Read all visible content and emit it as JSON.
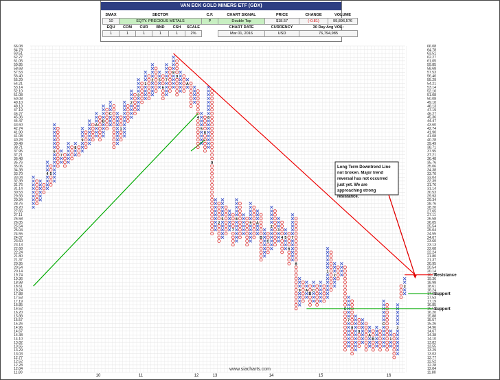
{
  "header": {
    "title": "VAN ECK GOLD MINERS ETF (GDX)",
    "labels": {
      "smax": "SMAX",
      "sector": "SECTOR",
      "cf": "C.F.",
      "chart_signal": "CHART SIGNAL",
      "price": "PRICE",
      "change": "CHANGE",
      "volume": "VOLUME",
      "equ": "EQU",
      "com": "COM",
      "cur": "CUR",
      "bnd": "BND",
      "csh": "CSH",
      "scale": "SCALE",
      "chart_date": "CHART DATE",
      "currency": "CURRENCY",
      "avg_vol": "30 Day Avg VOL:"
    },
    "values": {
      "smax": "10",
      "sector": "EQTY. PRECIOUS METALS",
      "cf": "P",
      "chart_signal": "Double Top",
      "price": "$18.57",
      "change": "(-0.81)",
      "volume": "99,896,576",
      "equ": "1",
      "com": "1",
      "cur": "1",
      "bnd": "1",
      "csh": "1",
      "scale": "2%",
      "chart_date": "Mar 01, 2016",
      "currency": "USD",
      "avg_vol": "76,794,985"
    }
  },
  "chart_data": {
    "type": "point-and-figure",
    "title": "",
    "scale": "2%",
    "yticks": [
      "66.08",
      "64.78",
      "63.51",
      "62.27",
      "61.05",
      "59.85",
      "58.68",
      "57.53",
      "56.40",
      "55.29",
      "54.21",
      "53.14",
      "52.10",
      "51.08",
      "50.08",
      "49.10",
      "48.13",
      "47.19",
      "46.27",
      "45.36",
      "44.47",
      "43.60",
      "42.74",
      "41.90",
      "41.08",
      "40.28",
      "39.49",
      "38.71",
      "37.95",
      "37.21",
      "36.48",
      "35.76",
      "35.06",
      "34.38",
      "33.70",
      "33.04",
      "32.39",
      "31.76",
      "31.14",
      "30.53",
      "29.93",
      "29.34",
      "28.76",
      "28.20",
      "27.65",
      "27.11",
      "26.58",
      "26.05",
      "25.54",
      "25.04",
      "24.55",
      "24.07",
      "23.60",
      "23.13",
      "22.68",
      "22.24",
      "21.80",
      "21.37",
      "20.95",
      "20.54",
      "20.14",
      "19.74",
      "19.36",
      "18.98",
      "18.61",
      "18.24",
      "17.88",
      "17.53",
      "17.19",
      "16.85",
      "16.52",
      "16.20",
      "15.88",
      "15.57",
      "15.26",
      "14.96",
      "14.67",
      "14.38",
      "14.10",
      "13.82",
      "13.55",
      "13.29",
      "13.03",
      "12.77",
      "12.52",
      "12.28",
      "12.04",
      "11.80"
    ],
    "xticks": [
      "10",
      "11",
      "12",
      "13",
      "14",
      "15",
      "16"
    ],
    "columns": [
      {
        "kind": "X",
        "low": "28.20",
        "high": "33.04",
        "month": ""
      },
      {
        "kind": "O",
        "low": "28.76",
        "high": "32.39",
        "month": ""
      },
      {
        "kind": "X",
        "low": "29.34",
        "high": "32.39",
        "month": ""
      },
      {
        "kind": "O",
        "low": "30.53",
        "high": "31.76",
        "month": ""
      },
      {
        "kind": "X",
        "low": "31.14",
        "high": "35.76",
        "month": "4"
      },
      {
        "kind": "O",
        "low": "31.76",
        "high": "35.06",
        "month": "5"
      },
      {
        "kind": "X",
        "low": "32.39",
        "high": "43.60",
        "month": "6"
      },
      {
        "kind": "O",
        "low": "35.06",
        "high": "42.74",
        "month": ""
      },
      {
        "kind": "X",
        "low": "35.76",
        "high": "37.95",
        "month": "7"
      },
      {
        "kind": "O",
        "low": "35.06",
        "high": "37.21",
        "month": ""
      },
      {
        "kind": "X",
        "low": "35.76",
        "high": "39.49",
        "month": ""
      },
      {
        "kind": "O",
        "low": "36.48",
        "high": "38.71",
        "month": ""
      },
      {
        "kind": "X",
        "low": "37.21",
        "high": "39.49",
        "month": "8"
      },
      {
        "kind": "O",
        "low": "37.21",
        "high": "38.71",
        "month": ""
      },
      {
        "kind": "X",
        "low": "37.95",
        "high": "42.74",
        "month": "9"
      },
      {
        "kind": "O",
        "low": "38.71",
        "high": "41.90",
        "month": ""
      },
      {
        "kind": "X",
        "low": "39.49",
        "high": "44.47",
        "month": ""
      },
      {
        "kind": "O",
        "low": "40.28",
        "high": "43.60",
        "month": ""
      },
      {
        "kind": "X",
        "low": "41.08",
        "high": "46.27",
        "month": "A"
      },
      {
        "kind": "O",
        "low": "40.28",
        "high": "45.36",
        "month": ""
      },
      {
        "kind": "X",
        "low": "41.08",
        "high": "48.13",
        "month": "B"
      },
      {
        "kind": "O",
        "low": "42.74",
        "high": "47.19",
        "month": ""
      },
      {
        "kind": "X",
        "low": "43.60",
        "high": "49.10",
        "month": "C"
      },
      {
        "kind": "O",
        "low": "38.71",
        "high": "48.13",
        "month": ""
      },
      {
        "kind": "X",
        "low": "39.49",
        "high": "46.27",
        "month": ""
      },
      {
        "kind": "O",
        "low": "40.28",
        "high": "45.36",
        "month": "1"
      },
      {
        "kind": "X",
        "low": "41.08",
        "high": "49.10",
        "month": ""
      },
      {
        "kind": "O",
        "low": "44.47",
        "high": "48.13",
        "month": ""
      },
      {
        "kind": "X",
        "low": "45.36",
        "high": "52.10",
        "month": "2"
      },
      {
        "kind": "O",
        "low": "46.27",
        "high": "51.08",
        "month": ""
      },
      {
        "kind": "X",
        "low": "47.19",
        "high": "55.29",
        "month": "3"
      },
      {
        "kind": "O",
        "low": "49.10",
        "high": "54.21",
        "month": ""
      },
      {
        "kind": "X",
        "low": "50.08",
        "high": "57.53",
        "month": "1"
      },
      {
        "kind": "O",
        "low": "50.08",
        "high": "56.40",
        "month": ""
      },
      {
        "kind": "X",
        "low": "51.08",
        "high": "59.85",
        "month": "2"
      },
      {
        "kind": "O",
        "low": "52.10",
        "high": "58.68",
        "month": ""
      },
      {
        "kind": "X",
        "low": "53.14",
        "high": "57.53",
        "month": "5"
      },
      {
        "kind": "O",
        "low": "50.08",
        "high": "56.40",
        "month": "6"
      },
      {
        "kind": "X",
        "low": "51.08",
        "high": "59.85",
        "month": "7"
      },
      {
        "kind": "O",
        "low": "52.10",
        "high": "58.68",
        "month": ""
      },
      {
        "kind": "X",
        "low": "53.14",
        "high": "62.27",
        "month": "8"
      },
      {
        "kind": "O",
        "low": "51.08",
        "high": "61.05",
        "month": "9"
      },
      {
        "kind": "X",
        "low": "52.10",
        "high": "57.53",
        "month": ""
      },
      {
        "kind": "O",
        "low": "52.10",
        "high": "56.40",
        "month": ""
      },
      {
        "kind": "X",
        "low": "53.14",
        "high": "55.29",
        "month": "A"
      },
      {
        "kind": "O",
        "low": "48.13",
        "high": "54.21",
        "month": ""
      },
      {
        "kind": "X",
        "low": "49.10",
        "high": "53.14",
        "month": ""
      },
      {
        "kind": "O",
        "low": "38.71",
        "high": "52.10",
        "month": "4"
      },
      {
        "kind": "X",
        "low": "39.49",
        "high": "46.27",
        "month": "5"
      },
      {
        "kind": "O",
        "low": "37.95",
        "high": "45.36",
        "month": "6"
      },
      {
        "kind": "X",
        "low": "38.71",
        "high": "53.14",
        "month": "8"
      },
      {
        "kind": "O",
        "low": "24.55",
        "high": "52.10",
        "month": "9"
      },
      {
        "kind": "X",
        "low": "25.04",
        "high": "29.34",
        "month": ""
      },
      {
        "kind": "O",
        "low": "23.60",
        "high": "28.76",
        "month": "2"
      },
      {
        "kind": "X",
        "low": "24.07",
        "high": "29.34",
        "month": "5"
      },
      {
        "kind": "O",
        "low": "24.55",
        "high": "28.20",
        "month": ""
      },
      {
        "kind": "X",
        "low": "25.04",
        "high": "27.65",
        "month": ""
      },
      {
        "kind": "O",
        "low": "23.13",
        "high": "27.11",
        "month": "7"
      },
      {
        "kind": "X",
        "low": "23.60",
        "high": "29.34",
        "month": "8"
      },
      {
        "kind": "O",
        "low": "24.07",
        "high": "28.76",
        "month": ""
      },
      {
        "kind": "X",
        "low": "24.55",
        "high": "27.11",
        "month": ""
      },
      {
        "kind": "O",
        "low": "23.13",
        "high": "26.58",
        "month": ""
      },
      {
        "kind": "X",
        "low": "23.60",
        "high": "28.76",
        "month": "9"
      },
      {
        "kind": "O",
        "low": "24.07",
        "high": "28.20",
        "month": ""
      },
      {
        "kind": "X",
        "low": "24.55",
        "high": "27.65",
        "month": "A"
      },
      {
        "kind": "O",
        "low": "21.37",
        "high": "27.11",
        "month": "B"
      },
      {
        "kind": "X",
        "low": "21.80",
        "high": "25.04",
        "month": ""
      },
      {
        "kind": "O",
        "low": "22.24",
        "high": "24.55",
        "month": "C"
      },
      {
        "kind": "X",
        "low": "22.68",
        "high": "28.20",
        "month": "2"
      },
      {
        "kind": "O",
        "low": "23.13",
        "high": "27.65",
        "month": ""
      },
      {
        "kind": "X",
        "low": "23.60",
        "high": "26.58",
        "month": "3"
      },
      {
        "kind": "O",
        "low": "22.24",
        "high": "26.05",
        "month": "4"
      },
      {
        "kind": "X",
        "low": "22.68",
        "high": "25.04",
        "month": "5"
      },
      {
        "kind": "O",
        "low": "20.95",
        "high": "24.55",
        "month": "6"
      },
      {
        "kind": "X",
        "low": "21.37",
        "high": "27.11",
        "month": "7"
      },
      {
        "kind": "O",
        "low": "16.52",
        "high": "26.58",
        "month": "8"
      },
      {
        "kind": "X",
        "low": "16.85",
        "high": "19.36",
        "month": "9"
      },
      {
        "kind": "O",
        "low": "17.19",
        "high": "18.98",
        "month": ""
      },
      {
        "kind": "X",
        "low": "17.53",
        "high": "18.98",
        "month": "A"
      },
      {
        "kind": "O",
        "low": "16.85",
        "high": "18.61",
        "month": "B"
      },
      {
        "kind": "X",
        "low": "17.19",
        "high": "18.98",
        "month": "C"
      },
      {
        "kind": "O",
        "low": "16.85",
        "high": "18.61",
        "month": ""
      },
      {
        "kind": "X",
        "low": "17.19",
        "high": "18.98",
        "month": ""
      },
      {
        "kind": "O",
        "low": "17.19",
        "high": "18.61",
        "month": ""
      },
      {
        "kind": "X",
        "low": "17.53",
        "high": "22.68",
        "month": "1"
      },
      {
        "kind": "O",
        "low": "18.24",
        "high": "22.24",
        "month": ""
      },
      {
        "kind": "X",
        "low": "18.61",
        "high": "20.95",
        "month": "2"
      },
      {
        "kind": "O",
        "low": "19.36",
        "high": "20.54",
        "month": ""
      },
      {
        "kind": "X",
        "low": "19.74",
        "high": "20.95",
        "month": ""
      },
      {
        "kind": "O",
        "low": "13.29",
        "high": "20.54",
        "month": "6"
      },
      {
        "kind": "X",
        "low": "13.55",
        "high": "17.53",
        "month": "7"
      },
      {
        "kind": "O",
        "low": "13.03",
        "high": "17.19",
        "month": "8"
      },
      {
        "kind": "X",
        "low": "13.29",
        "high": "15.88",
        "month": ""
      },
      {
        "kind": "O",
        "low": "13.55",
        "high": "15.57",
        "month": "9"
      },
      {
        "kind": "X",
        "low": "13.82",
        "high": "15.57",
        "month": ""
      },
      {
        "kind": "O",
        "low": "13.29",
        "high": "15.26",
        "month": ""
      },
      {
        "kind": "X",
        "low": "13.55",
        "high": "14.96",
        "month": "A"
      },
      {
        "kind": "O",
        "low": "13.29",
        "high": "14.67",
        "month": "B"
      },
      {
        "kind": "X",
        "low": "13.55",
        "high": "14.96",
        "month": ""
      },
      {
        "kind": "O",
        "low": "13.29",
        "high": "14.67",
        "month": ""
      },
      {
        "kind": "X",
        "low": "13.55",
        "high": "17.19",
        "month": "C"
      },
      {
        "kind": "O",
        "low": "13.29",
        "high": "16.85",
        "month": ""
      },
      {
        "kind": "X",
        "low": "13.55",
        "high": "14.67",
        "month": "1"
      },
      {
        "kind": "O",
        "low": "12.77",
        "high": "14.38",
        "month": ""
      },
      {
        "kind": "X",
        "low": "13.03",
        "high": "16.85",
        "month": "2"
      },
      {
        "kind": "O",
        "low": "17.53",
        "high": "18.61",
        "month": ""
      },
      {
        "kind": "X",
        "low": "17.88",
        "high": "19.36",
        "month": "3"
      }
    ],
    "trendlines": [
      {
        "name": "bullish-support-line-1",
        "color": "#00aa00",
        "from": {
          "col": 0,
          "price": "18.61"
        },
        "to": {
          "col": 47,
          "price": "46.27"
        }
      },
      {
        "name": "bullish-support-line-2",
        "color": "#00aa00",
        "from": {
          "col": 45,
          "price": "37.95"
        },
        "to": {
          "col": 49,
          "price": "40.28"
        }
      },
      {
        "name": "bearish-resistance-line",
        "color": "#ee0000",
        "from": {
          "col": 40,
          "price": "63.51"
        },
        "to": {
          "col": 109,
          "price": "19.74"
        }
      }
    ],
    "levels": [
      {
        "name": "resistance",
        "label": "Resistance",
        "price": "19.74",
        "color": "#ee0000",
        "from_col": 106
      },
      {
        "name": "support-upper",
        "label": "Support",
        "price": "17.88",
        "color": "#00aa00",
        "from_col": 107
      },
      {
        "name": "support-lower",
        "label": "Support",
        "price": "16.52",
        "color": "#00aa00",
        "from_col": 78
      }
    ],
    "annotation": {
      "text": "Long Term Downtrend Line not broken. Major trend reversal has not occurred just yet. We are approaching strong resistance.",
      "arrow_to": {
        "col": 109,
        "price": "19.36"
      }
    },
    "watermark": "www.siacharts.com",
    "colors": {
      "x": "#3a52c8",
      "o": "#e03030",
      "grid": "#e2e2e2"
    }
  }
}
